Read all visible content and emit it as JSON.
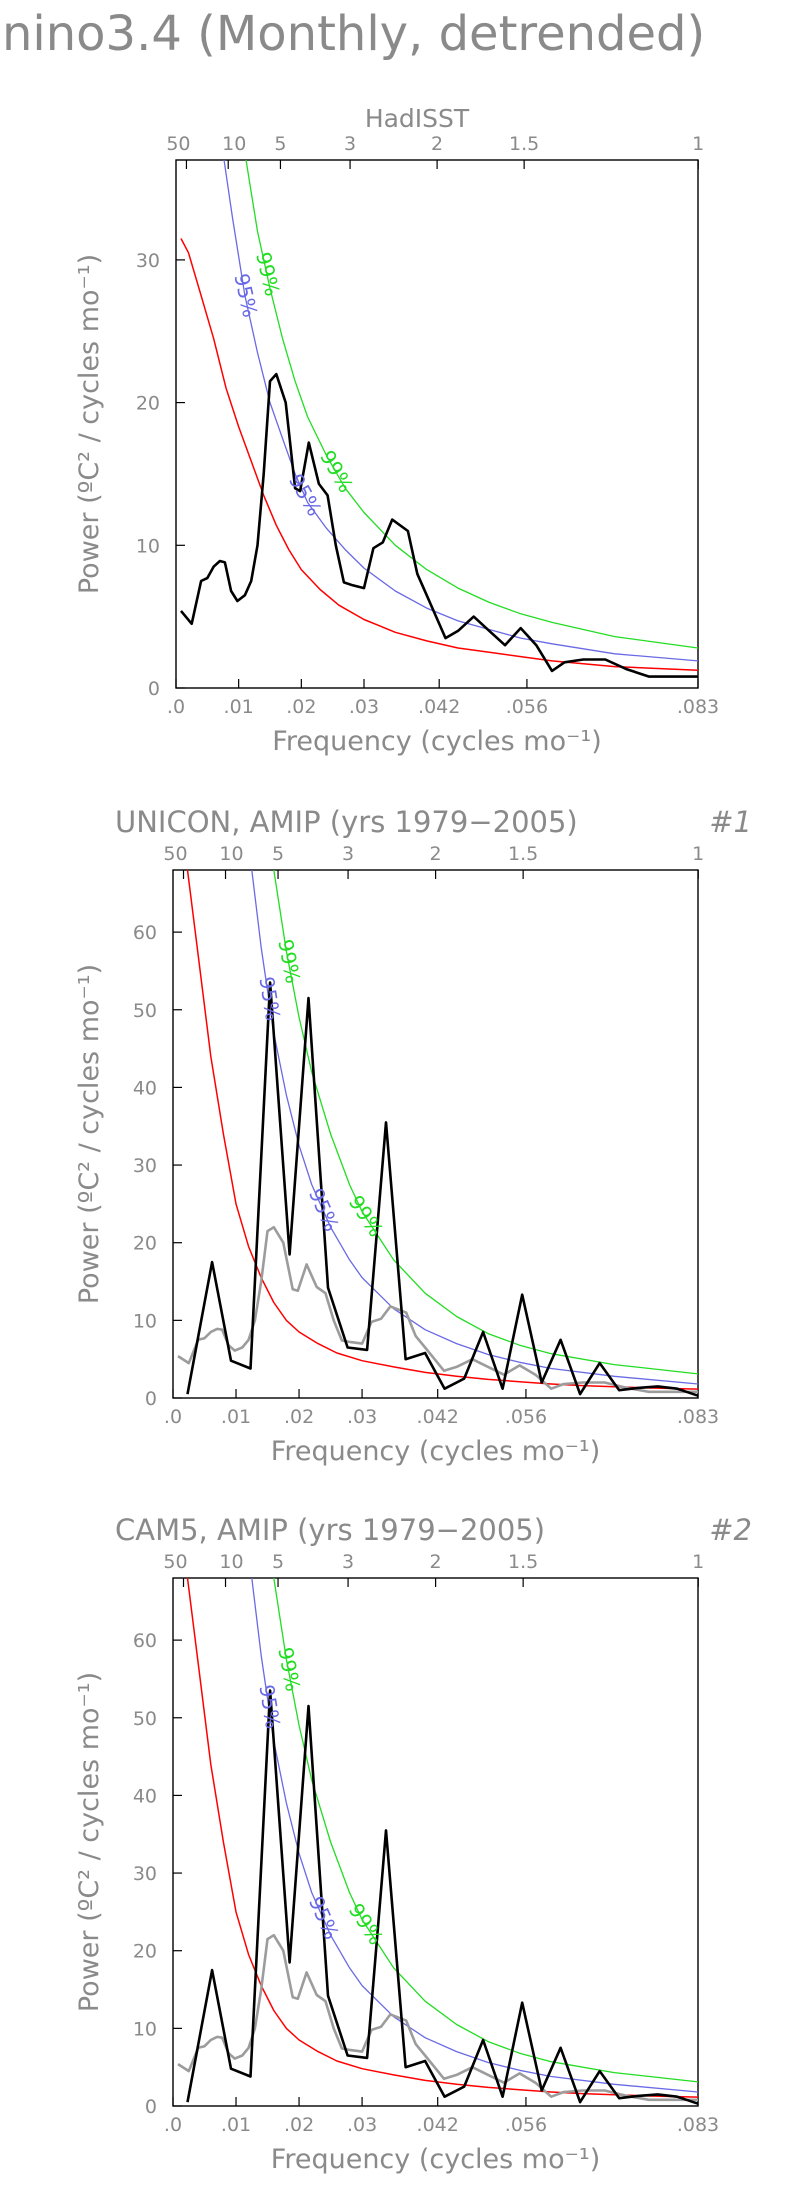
{
  "main_title": "nino3.4 (Monthly, detrended)",
  "colors": {
    "text": "#8a8a8a",
    "observed": "#000000",
    "reference": "#9c9c9c",
    "red_noise": "#ff0000",
    "conf95": "#6a6ae6",
    "conf99": "#22dd22"
  },
  "chart_data": [
    {
      "type": "line",
      "title": "HadISST",
      "tag": "",
      "xlabel": "Frequency (cycles mo⁻¹)",
      "ylabel": "Power (ºC² / cycles mo⁻¹)",
      "xlim": [
        0,
        0.0833
      ],
      "ylim": [
        0,
        37
      ],
      "x_tick_labels": [
        ".0",
        ".01",
        ".02",
        ".03",
        ".042",
        ".056",
        ".083"
      ],
      "x_tick_values": [
        0,
        0.01,
        0.02,
        0.03,
        0.042,
        0.056,
        0.0833
      ],
      "y_ticks": [
        0,
        10,
        20,
        30
      ],
      "period_axis": {
        "labels": [
          "50",
          "10",
          "5",
          "3",
          "2",
          "1.5",
          "1"
        ],
        "periods_years": [
          50,
          10,
          5,
          3,
          2,
          1.5,
          1
        ]
      },
      "confidence_labels": [
        "95%",
        "99%"
      ],
      "grid": false,
      "series": [
        {
          "role": "red-noise",
          "x": [
            0.0008,
            0.002,
            0.004,
            0.006,
            0.008,
            0.01,
            0.012,
            0.014,
            0.016,
            0.018,
            0.02,
            0.023,
            0.026,
            0.03,
            0.035,
            0.04,
            0.045,
            0.05,
            0.055,
            0.06,
            0.065,
            0.07,
            0.075,
            0.0833
          ],
          "values": [
            31.5,
            30.5,
            27.5,
            24.5,
            21.0,
            18.3,
            15.9,
            13.5,
            11.4,
            9.7,
            8.3,
            6.9,
            5.8,
            4.8,
            3.9,
            3.3,
            2.8,
            2.5,
            2.2,
            1.9,
            1.7,
            1.5,
            1.4,
            1.25
          ]
        },
        {
          "role": "95%",
          "x": [
            0.0075,
            0.009,
            0.011,
            0.013,
            0.015,
            0.017,
            0.019,
            0.021,
            0.024,
            0.027,
            0.03,
            0.035,
            0.04,
            0.045,
            0.05,
            0.055,
            0.06,
            0.07,
            0.0833
          ],
          "values": [
            37.5,
            33.0,
            27.5,
            23.5,
            20.0,
            17.5,
            15.0,
            13.0,
            11.2,
            9.7,
            8.4,
            6.8,
            5.6,
            4.7,
            4.1,
            3.5,
            3.1,
            2.4,
            1.9
          ]
        },
        {
          "role": "99%",
          "x": [
            0.011,
            0.013,
            0.015,
            0.017,
            0.019,
            0.021,
            0.024,
            0.027,
            0.03,
            0.035,
            0.04,
            0.045,
            0.05,
            0.055,
            0.06,
            0.07,
            0.0833
          ],
          "values": [
            37.5,
            32.0,
            28.0,
            24.5,
            21.5,
            19.0,
            16.3,
            14.0,
            12.3,
            10.0,
            8.3,
            7.0,
            6.0,
            5.2,
            4.6,
            3.6,
            2.8
          ]
        },
        {
          "role": "observed",
          "x": [
            0.0008,
            0.0025,
            0.004,
            0.005,
            0.006,
            0.007,
            0.0078,
            0.0088,
            0.0098,
            0.011,
            0.012,
            0.013,
            0.014,
            0.015,
            0.016,
            0.0175,
            0.019,
            0.0198,
            0.0212,
            0.0228,
            0.0242,
            0.0255,
            0.0268,
            0.0282,
            0.03,
            0.0315,
            0.033,
            0.0345,
            0.037,
            0.0385,
            0.04,
            0.0415,
            0.043,
            0.045,
            0.0475,
            0.05,
            0.0525,
            0.055,
            0.0575,
            0.06,
            0.062,
            0.065,
            0.0685,
            0.072,
            0.0755,
            0.0785,
            0.0833
          ],
          "values": [
            5.4,
            4.5,
            7.5,
            7.7,
            8.5,
            8.9,
            8.8,
            6.8,
            6.1,
            6.5,
            7.5,
            10.0,
            15.0,
            21.5,
            22.0,
            20.0,
            14.0,
            13.8,
            17.2,
            14.3,
            13.5,
            10.0,
            7.4,
            7.2,
            7.0,
            9.8,
            10.2,
            11.8,
            11.0,
            8.0,
            6.5,
            5.0,
            3.5,
            4.0,
            5.0,
            4.0,
            3.0,
            4.2,
            3.0,
            1.2,
            1.8,
            2.0,
            2.0,
            1.3,
            0.8,
            0.8,
            0.8
          ]
        }
      ]
    },
    {
      "type": "line",
      "title": "UNICON, AMIP (yrs 1979−2005)",
      "tag": "#1",
      "xlabel": "Frequency (cycles mo⁻¹)",
      "ylabel": "Power (ºC² / cycles mo⁻¹)",
      "xlim": [
        0,
        0.0833
      ],
      "ylim": [
        0,
        68
      ],
      "x_tick_labels": [
        ".0",
        ".01",
        ".02",
        ".03",
        ".042",
        ".056",
        ".083"
      ],
      "x_tick_values": [
        0,
        0.01,
        0.02,
        0.03,
        0.042,
        0.056,
        0.0833
      ],
      "y_ticks": [
        0,
        10,
        20,
        30,
        40,
        50,
        60
      ],
      "period_axis": {
        "labels": [
          "50",
          "10",
          "5",
          "3",
          "2",
          "1.5",
          "1"
        ],
        "periods_years": [
          50,
          10,
          5,
          3,
          2,
          1.5,
          1
        ]
      },
      "confidence_labels": [
        "95%",
        "99%"
      ],
      "grid": false,
      "series": [
        {
          "role": "red-noise",
          "x": [
            0.0023,
            0.004,
            0.006,
            0.008,
            0.01,
            0.012,
            0.014,
            0.016,
            0.018,
            0.02,
            0.023,
            0.026,
            0.03,
            0.035,
            0.04,
            0.045,
            0.05,
            0.055,
            0.06,
            0.065,
            0.07,
            0.075,
            0.0833
          ],
          "values": [
            68.0,
            57.0,
            44.0,
            34.0,
            25.0,
            19.5,
            15.5,
            12.3,
            10.0,
            8.5,
            7.0,
            5.8,
            4.8,
            4.0,
            3.3,
            2.8,
            2.4,
            2.1,
            1.8,
            1.6,
            1.45,
            1.3,
            1.15
          ]
        },
        {
          "role": "95%",
          "x": [
            0.0125,
            0.014,
            0.016,
            0.018,
            0.02,
            0.022,
            0.025,
            0.028,
            0.03,
            0.035,
            0.04,
            0.045,
            0.05,
            0.055,
            0.06,
            0.07,
            0.0833
          ],
          "values": [
            68.0,
            58.0,
            47.0,
            39.0,
            32.5,
            27.5,
            22.0,
            17.8,
            15.5,
            11.5,
            8.8,
            7.0,
            5.6,
            4.6,
            3.8,
            2.8,
            1.8
          ]
        },
        {
          "role": "99%",
          "x": [
            0.016,
            0.018,
            0.02,
            0.022,
            0.025,
            0.028,
            0.03,
            0.035,
            0.04,
            0.045,
            0.05,
            0.055,
            0.06,
            0.07,
            0.0833
          ],
          "values": [
            68.0,
            57.5,
            49.0,
            42.0,
            34.0,
            27.5,
            24.0,
            17.8,
            13.5,
            10.5,
            8.3,
            6.8,
            5.7,
            4.3,
            3.1
          ]
        },
        {
          "role": "reference",
          "x": [
            0.0008,
            0.0025,
            0.004,
            0.005,
            0.006,
            0.007,
            0.0078,
            0.0088,
            0.0098,
            0.011,
            0.012,
            0.013,
            0.014,
            0.015,
            0.016,
            0.0175,
            0.019,
            0.0198,
            0.0212,
            0.0228,
            0.0242,
            0.0255,
            0.0268,
            0.0282,
            0.03,
            0.0315,
            0.033,
            0.0345,
            0.037,
            0.0385,
            0.04,
            0.0415,
            0.043,
            0.045,
            0.0475,
            0.05,
            0.0525,
            0.055,
            0.0575,
            0.06,
            0.062,
            0.065,
            0.0685,
            0.072,
            0.0755,
            0.0785,
            0.0833
          ],
          "values": [
            5.4,
            4.5,
            7.5,
            7.7,
            8.5,
            8.9,
            8.8,
            6.8,
            6.1,
            6.5,
            7.5,
            10.0,
            15.0,
            21.5,
            22.0,
            20.0,
            14.0,
            13.8,
            17.2,
            14.3,
            13.5,
            10.0,
            7.4,
            7.2,
            7.0,
            9.8,
            10.2,
            11.8,
            11.0,
            8.0,
            6.5,
            5.0,
            3.5,
            4.0,
            5.0,
            4.0,
            3.0,
            4.2,
            3.0,
            1.2,
            1.8,
            2.0,
            2.0,
            1.3,
            0.8,
            0.8,
            0.8
          ]
        },
        {
          "role": "observed",
          "x": [
            0.0023,
            0.0062,
            0.0092,
            0.0123,
            0.0154,
            0.0185,
            0.0215,
            0.0246,
            0.0277,
            0.0308,
            0.0338,
            0.0369,
            0.04,
            0.0431,
            0.0462,
            0.0492,
            0.0523,
            0.0554,
            0.0585,
            0.0615,
            0.0646,
            0.0677,
            0.0708,
            0.0738,
            0.0769,
            0.08,
            0.0833
          ],
          "values": [
            0.5,
            17.5,
            4.8,
            3.8,
            53.5,
            18.5,
            51.5,
            14.2,
            6.5,
            6.2,
            35.5,
            5.0,
            5.8,
            1.2,
            2.5,
            8.5,
            1.2,
            13.3,
            2.0,
            7.5,
            0.5,
            4.5,
            1.0,
            1.3,
            1.5,
            1.2,
            0.3
          ]
        }
      ]
    },
    {
      "type": "line",
      "title": "CAM5, AMIP (yrs 1979−2005)",
      "tag": "#2",
      "xlabel": "Frequency (cycles mo⁻¹)",
      "ylabel": "Power (ºC² / cycles mo⁻¹)",
      "xlim": [
        0,
        0.0833
      ],
      "ylim": [
        0,
        68
      ],
      "x_tick_labels": [
        ".0",
        ".01",
        ".02",
        ".03",
        ".042",
        ".056",
        ".083"
      ],
      "x_tick_values": [
        0,
        0.01,
        0.02,
        0.03,
        0.042,
        0.056,
        0.0833
      ],
      "y_ticks": [
        0,
        10,
        20,
        30,
        40,
        50,
        60
      ],
      "period_axis": {
        "labels": [
          "50",
          "10",
          "5",
          "3",
          "2",
          "1.5",
          "1"
        ],
        "periods_years": [
          50,
          10,
          5,
          3,
          2,
          1.5,
          1
        ]
      },
      "confidence_labels": [
        "95%",
        "99%"
      ],
      "grid": false,
      "series": [
        {
          "role": "red-noise",
          "x": [
            0.0023,
            0.004,
            0.006,
            0.008,
            0.01,
            0.012,
            0.014,
            0.016,
            0.018,
            0.02,
            0.023,
            0.026,
            0.03,
            0.035,
            0.04,
            0.045,
            0.05,
            0.055,
            0.06,
            0.065,
            0.07,
            0.075,
            0.0833
          ],
          "values": [
            68.0,
            57.0,
            44.0,
            34.0,
            25.0,
            19.5,
            15.5,
            12.3,
            10.0,
            8.5,
            7.0,
            5.8,
            4.8,
            4.0,
            3.3,
            2.8,
            2.4,
            2.1,
            1.8,
            1.6,
            1.45,
            1.3,
            1.15
          ]
        },
        {
          "role": "95%",
          "x": [
            0.0125,
            0.014,
            0.016,
            0.018,
            0.02,
            0.022,
            0.025,
            0.028,
            0.03,
            0.035,
            0.04,
            0.045,
            0.05,
            0.055,
            0.06,
            0.07,
            0.0833
          ],
          "values": [
            68.0,
            58.0,
            47.0,
            39.0,
            32.5,
            27.5,
            22.0,
            17.8,
            15.5,
            11.5,
            8.8,
            7.0,
            5.6,
            4.6,
            3.8,
            2.8,
            1.8
          ]
        },
        {
          "role": "99%",
          "x": [
            0.016,
            0.018,
            0.02,
            0.022,
            0.025,
            0.028,
            0.03,
            0.035,
            0.04,
            0.045,
            0.05,
            0.055,
            0.06,
            0.07,
            0.0833
          ],
          "values": [
            68.0,
            57.5,
            49.0,
            42.0,
            34.0,
            27.5,
            24.0,
            17.8,
            13.5,
            10.5,
            8.3,
            6.8,
            5.7,
            4.3,
            3.1
          ]
        },
        {
          "role": "reference",
          "x": [
            0.0008,
            0.0025,
            0.004,
            0.005,
            0.006,
            0.007,
            0.0078,
            0.0088,
            0.0098,
            0.011,
            0.012,
            0.013,
            0.014,
            0.015,
            0.016,
            0.0175,
            0.019,
            0.0198,
            0.0212,
            0.0228,
            0.0242,
            0.0255,
            0.0268,
            0.0282,
            0.03,
            0.0315,
            0.033,
            0.0345,
            0.037,
            0.0385,
            0.04,
            0.0415,
            0.043,
            0.045,
            0.0475,
            0.05,
            0.0525,
            0.055,
            0.0575,
            0.06,
            0.062,
            0.065,
            0.0685,
            0.072,
            0.0755,
            0.0785,
            0.0833
          ],
          "values": [
            5.4,
            4.5,
            7.5,
            7.7,
            8.5,
            8.9,
            8.8,
            6.8,
            6.1,
            6.5,
            7.5,
            10.0,
            15.0,
            21.5,
            22.0,
            20.0,
            14.0,
            13.8,
            17.2,
            14.3,
            13.5,
            10.0,
            7.4,
            7.2,
            7.0,
            9.8,
            10.2,
            11.8,
            11.0,
            8.0,
            6.5,
            5.0,
            3.5,
            4.0,
            5.0,
            4.0,
            3.0,
            4.2,
            3.0,
            1.2,
            1.8,
            2.0,
            2.0,
            1.3,
            0.8,
            0.8,
            0.8
          ]
        },
        {
          "role": "observed",
          "x": [
            0.0023,
            0.0062,
            0.0092,
            0.0123,
            0.0154,
            0.0185,
            0.0215,
            0.0246,
            0.0277,
            0.0308,
            0.0338,
            0.0369,
            0.04,
            0.0431,
            0.0462,
            0.0492,
            0.0523,
            0.0554,
            0.0585,
            0.0615,
            0.0646,
            0.0677,
            0.0708,
            0.0738,
            0.0769,
            0.08,
            0.0833
          ],
          "values": [
            0.5,
            17.5,
            4.8,
            3.8,
            53.5,
            18.5,
            51.5,
            14.2,
            6.5,
            6.2,
            35.5,
            5.0,
            5.8,
            1.2,
            2.5,
            8.5,
            1.2,
            13.3,
            2.0,
            7.5,
            0.5,
            4.5,
            1.0,
            1.3,
            1.5,
            1.2,
            0.3
          ]
        }
      ]
    }
  ]
}
